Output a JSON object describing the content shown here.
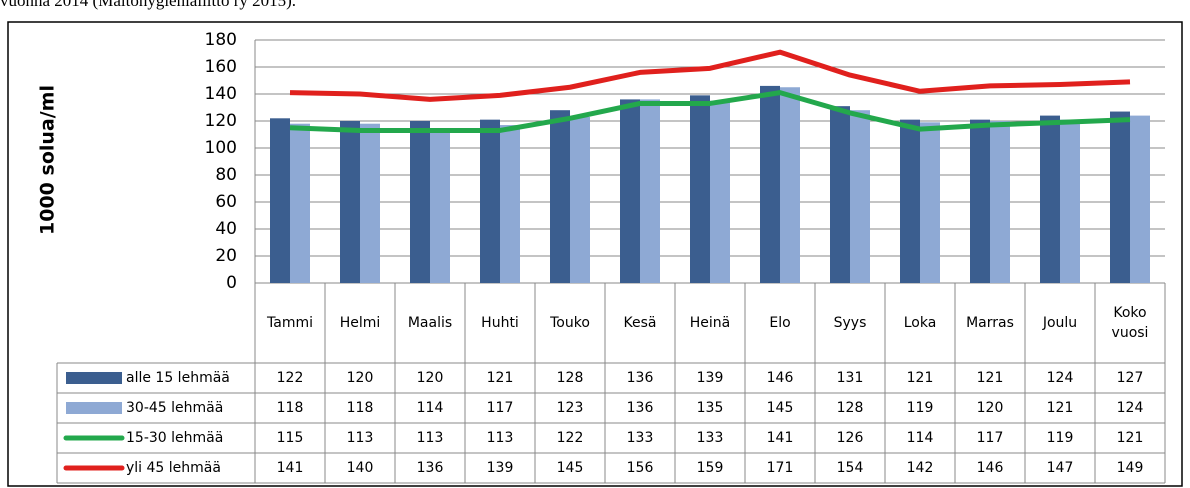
{
  "caption": "vuonna 2014 (Maitohygienialiitto ry 2015).",
  "chart_data": {
    "type": "bar",
    "y_label": "1000 solua/ml",
    "categories": [
      "Tammi",
      "Helmi",
      "Maalis",
      "Huhti",
      "Touko",
      "Kesä",
      "Heinä",
      "Elo",
      "Syys",
      "Loka",
      "Marras",
      "Joulu",
      "Koko vuosi"
    ],
    "series": [
      {
        "name": "alle 15 lehmää",
        "type": "bar",
        "color": "#3b5e8f",
        "values": [
          122,
          120,
          120,
          121,
          128,
          136,
          139,
          146,
          131,
          121,
          121,
          124,
          127
        ]
      },
      {
        "name": "30-45 lehmää",
        "type": "bar",
        "color": "#8ea9d4",
        "values": [
          118,
          118,
          114,
          117,
          123,
          136,
          135,
          145,
          128,
          119,
          120,
          121,
          124
        ]
      },
      {
        "name": "15-30 lehmää",
        "type": "line",
        "color": "#23a84c",
        "values": [
          115,
          113,
          113,
          113,
          122,
          133,
          133,
          141,
          126,
          114,
          117,
          119,
          121
        ]
      },
      {
        "name": "yli 45 lehmää",
        "type": "line",
        "color": "#e0201d",
        "values": [
          141,
          140,
          136,
          139,
          145,
          156,
          159,
          171,
          154,
          142,
          146,
          147,
          149
        ]
      }
    ],
    "ylim": [
      0,
      180
    ],
    "yticks": [
      0,
      20,
      40,
      60,
      80,
      100,
      120,
      140,
      160,
      180
    ],
    "grid": true,
    "data_table": true
  }
}
